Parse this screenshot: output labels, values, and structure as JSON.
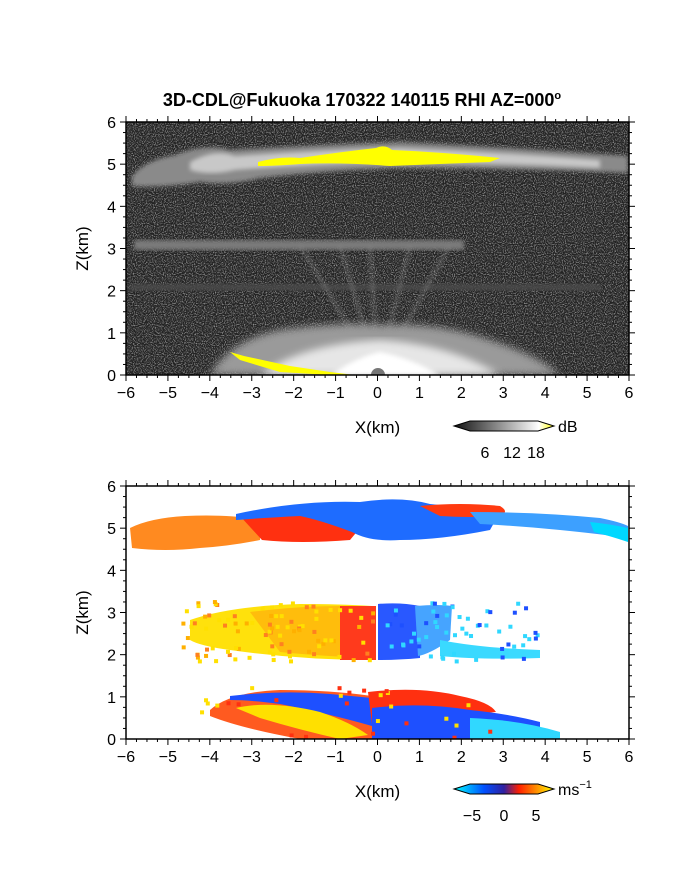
{
  "title": "3D-CDL@Fukuoka 170322 140115 RHI AZ=000",
  "title_superscript": "o",
  "chart_data": [
    {
      "type": "heatmap",
      "panel": "reflectivity",
      "xlabel": "X(km)",
      "ylabel": "Z(km)",
      "xlim": [
        -6,
        6
      ],
      "ylim": [
        0,
        6
      ],
      "x_ticks": [
        "−6",
        "−5",
        "−4",
        "−3",
        "−2",
        "−1",
        "0",
        "1",
        "2",
        "3",
        "4",
        "5",
        "6"
      ],
      "y_ticks": [
        "0",
        "1",
        "2",
        "3",
        "4",
        "5",
        "6"
      ],
      "colorbar": {
        "unit": "dB",
        "ticks": [
          "6",
          "12",
          "18"
        ],
        "colors": [
          "#1a1a1a",
          "#ffffff",
          "#ffff00"
        ]
      },
      "features": [
        {
          "name": "upper cloud layer",
          "x": [
            -5.8,
            6.0
          ],
          "z": [
            4.6,
            5.3
          ],
          "max_dB": 18
        },
        {
          "name": "middle layer",
          "x": [
            -4.5,
            1.8
          ],
          "z": [
            2.8,
            3.1
          ],
          "max_dB": 10
        },
        {
          "name": "lower layer",
          "x": [
            -5.0,
            3.0
          ],
          "z": [
            2.0,
            2.2
          ],
          "max_dB": 8
        },
        {
          "name": "near-ground echo",
          "x": [
            -3.5,
            4.0
          ],
          "z": [
            0.0,
            1.2
          ],
          "max_dB": 18
        }
      ]
    },
    {
      "type": "heatmap",
      "panel": "doppler velocity",
      "xlabel": "X(km)",
      "ylabel": "Z(km)",
      "xlim": [
        -6,
        6
      ],
      "ylim": [
        0,
        6
      ],
      "x_ticks": [
        "−6",
        "−5",
        "−4",
        "−3",
        "−2",
        "−1",
        "0",
        "1",
        "2",
        "3",
        "4",
        "5",
        "6"
      ],
      "y_ticks": [
        "0",
        "1",
        "2",
        "3",
        "4",
        "5",
        "6"
      ],
      "colorbar": {
        "unit": "ms",
        "unit_exp": "−1",
        "ticks": [
          "−5",
          "0",
          "5"
        ],
        "colors": [
          "#00ffff",
          "#0050ff",
          "#ff2000",
          "#ffff00"
        ]
      },
      "features": [
        {
          "name": "upper layer west",
          "x": [
            -5.8,
            -0.8
          ],
          "z": [
            4.6,
            5.3
          ],
          "velocity_ms": 4
        },
        {
          "name": "upper layer core",
          "x": [
            -3.0,
            2.0
          ],
          "z": [
            4.8,
            5.6
          ],
          "velocity_ms": -4
        },
        {
          "name": "upper layer east",
          "x": [
            1.5,
            6.0
          ],
          "z": [
            4.8,
            5.4
          ],
          "velocity_ms": -6
        },
        {
          "name": "middle layer west",
          "x": [
            -4.5,
            0.0
          ],
          "z": [
            1.9,
            3.2
          ],
          "velocity_ms": 5
        },
        {
          "name": "middle layer east",
          "x": [
            0.0,
            4.0
          ],
          "z": [
            1.9,
            3.2
          ],
          "velocity_ms": -5
        },
        {
          "name": "near-ground west",
          "x": [
            -4.0,
            0.0
          ],
          "z": [
            0.0,
            1.1
          ],
          "velocity_ms": 3
        },
        {
          "name": "near-ground east",
          "x": [
            0.0,
            4.5
          ],
          "z": [
            0.0,
            1.0
          ],
          "velocity_ms": -2
        }
      ]
    }
  ]
}
